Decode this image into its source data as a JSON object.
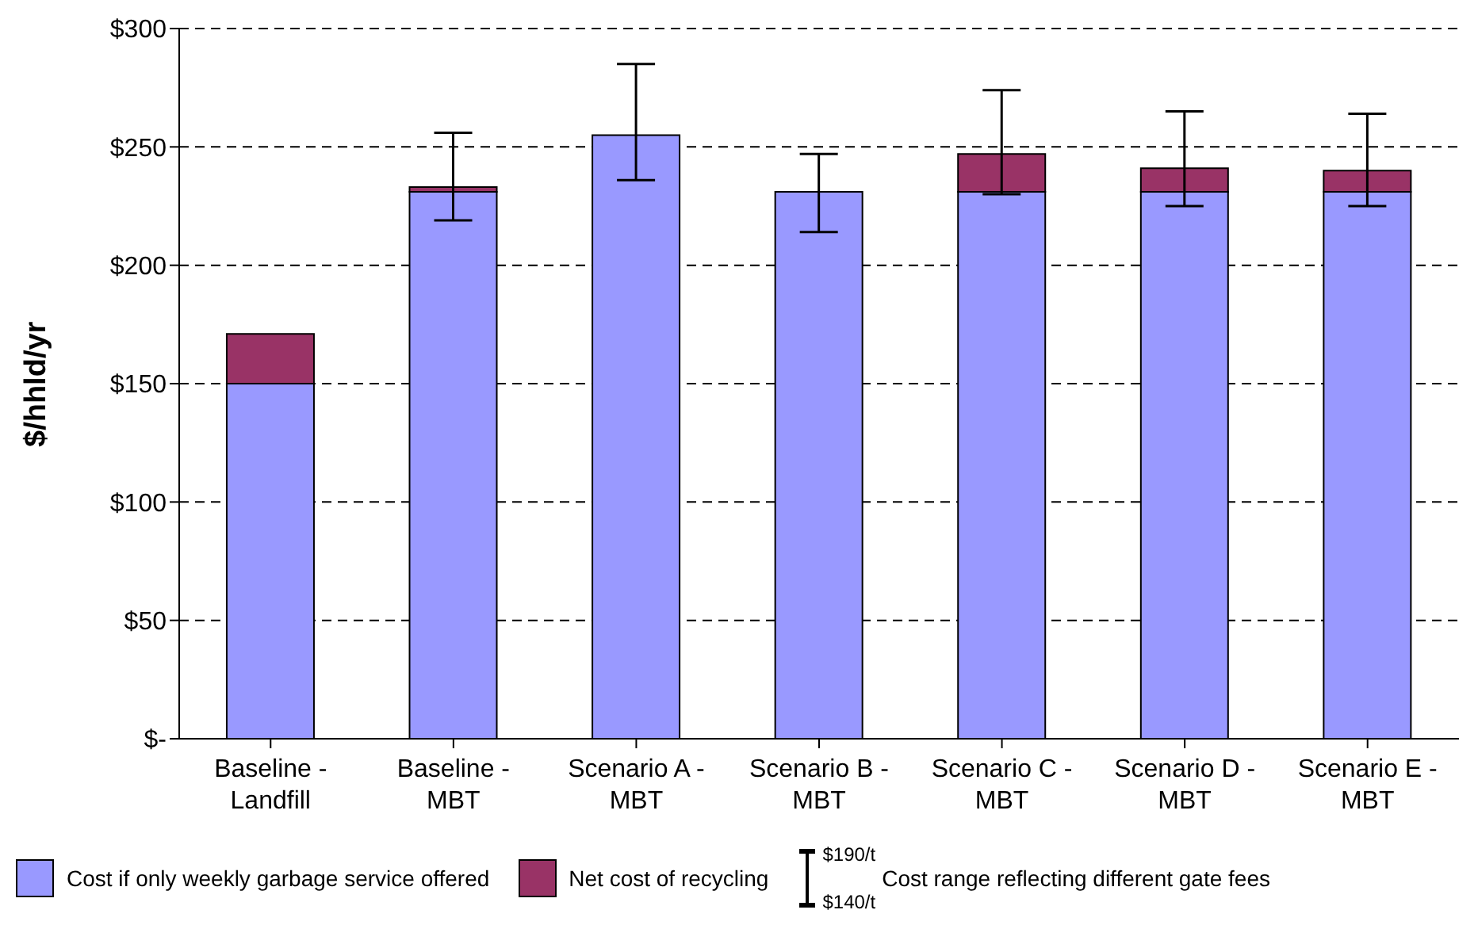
{
  "chart_data": {
    "type": "bar",
    "stacked": true,
    "ylabel": "$/hhld/yr",
    "categories": [
      "Baseline -\nLandfill",
      "Baseline -\nMBT",
      "Scenario A -\nMBT",
      "Scenario B -\nMBT",
      "Scenario C -\nMBT",
      "Scenario D -\nMBT",
      "Scenario E -\nMBT"
    ],
    "series": [
      {
        "name": "Cost if only weekly garbage service offered",
        "color": "#9999ff",
        "values": [
          150,
          231,
          255,
          231,
          231,
          231,
          231
        ],
        "errors": [
          null,
          null,
          [
            236,
            285
          ],
          [
            214,
            247
          ],
          null,
          null,
          null
        ]
      },
      {
        "name": "Net cost of recycling",
        "color": "#993366",
        "values": [
          21,
          2,
          null,
          null,
          16,
          10,
          9
        ],
        "errors": [
          null,
          [
            219,
            256
          ],
          null,
          null,
          [
            230,
            274
          ],
          [
            225,
            265
          ],
          [
            225,
            264
          ]
        ]
      }
    ],
    "ylim": [
      0,
      300
    ],
    "yticks": [
      {
        "value": 0,
        "label": "$-"
      },
      {
        "value": 50,
        "label": "$50"
      },
      {
        "value": 100,
        "label": "$100"
      },
      {
        "value": 150,
        "label": "$150"
      },
      {
        "value": 200,
        "label": "$200"
      },
      {
        "value": 250,
        "label": "$250"
      },
      {
        "value": 300,
        "label": "$300"
      }
    ],
    "grid": "y",
    "legend": "bottom",
    "annotations": [
      "$190/t",
      "$140/t",
      "Cost range reflecting different gate fees"
    ]
  }
}
